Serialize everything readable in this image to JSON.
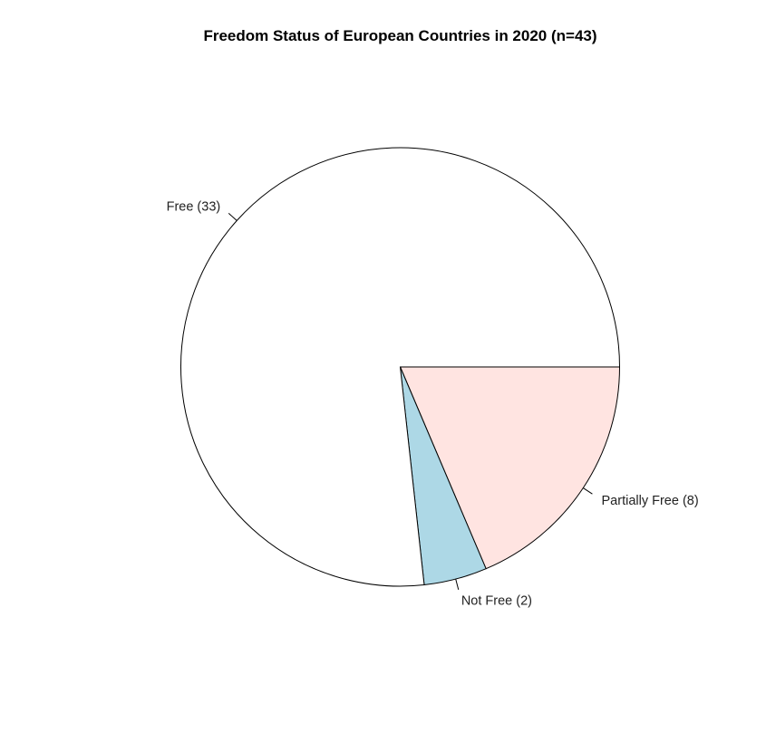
{
  "chart_data": {
    "type": "pie",
    "title": "Freedom Status of European Countries in 2020 (n=43)",
    "slices": [
      {
        "label": "Partially Free (8)",
        "value": 8,
        "color": "#FFE4E1"
      },
      {
        "label": "Not Free (2)",
        "value": 2,
        "color": "#ADD8E6"
      },
      {
        "label": "Free (33)",
        "value": 33,
        "color": "#FFFFFF"
      }
    ],
    "total": 43,
    "start_angle_deg": 0,
    "direction": "clockwise"
  }
}
